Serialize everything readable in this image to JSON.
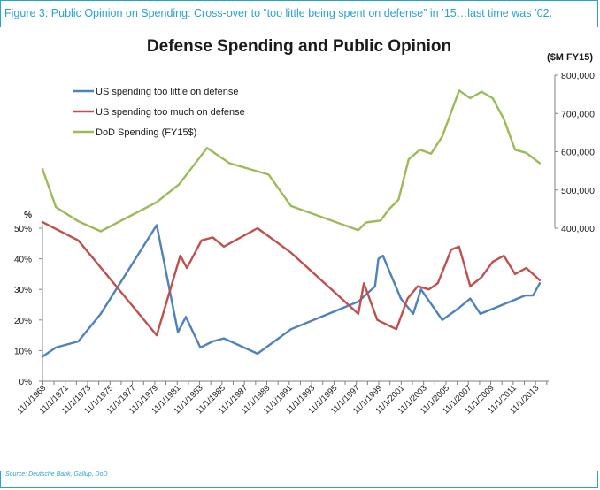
{
  "figure": {
    "caption": "Figure 3: Public Opinion on Spending: Cross-over to “too little being spent on defense” in ’15…last time was ’02.",
    "source": "Source: Deutsche Bank, Gallup, DoD",
    "accent_color": "#2aa1d4"
  },
  "chart_data": {
    "type": "line",
    "title": "Defense Spending and Public Opinion",
    "left_axis": {
      "unit_label": "%",
      "ylim": [
        0,
        50
      ],
      "ticks": [
        "0%",
        "10%",
        "20%",
        "30%",
        "40%",
        "50%"
      ]
    },
    "right_axis": {
      "unit_label": "($M FY15)",
      "ylim": [
        400000,
        800000
      ],
      "ticks": [
        "400,000",
        "500,000",
        "600,000",
        "700,000",
        "800,000"
      ]
    },
    "x_tick_labels": [
      "11/1/1969",
      "11/1/1971",
      "11/1/1973",
      "11/1/1975",
      "11/1/1977",
      "11/1/1979",
      "11/1/1981",
      "11/1/1983",
      "11/1/1985",
      "11/1/1987",
      "11/1/1989",
      "11/1/1991",
      "11/1/1993",
      "11/1/1995",
      "11/1/1997",
      "11/1/1999",
      "11/1/2001",
      "11/1/2003",
      "11/1/2005",
      "11/1/2007",
      "11/1/2009",
      "11/1/2011",
      "11/1/2013"
    ],
    "x_range": [
      1969.8,
      2015.0
    ],
    "legend_position": "top-left",
    "series": [
      {
        "name": "US spending too little on defense",
        "color": "#4f81bd",
        "axis": "left",
        "points": [
          [
            1969.8,
            8
          ],
          [
            1971.0,
            11
          ],
          [
            1973.0,
            13
          ],
          [
            1975.0,
            22
          ],
          [
            1980.0,
            51
          ],
          [
            1981.9,
            16
          ],
          [
            1982.6,
            21
          ],
          [
            1983.9,
            11
          ],
          [
            1985.0,
            13
          ],
          [
            1986.0,
            14
          ],
          [
            1989.0,
            9
          ],
          [
            1992.0,
            17
          ],
          [
            1998.0,
            26
          ],
          [
            1999.5,
            31
          ],
          [
            1999.8,
            40
          ],
          [
            2000.2,
            41
          ],
          [
            2001.8,
            27
          ],
          [
            2002.9,
            22
          ],
          [
            2003.6,
            30
          ],
          [
            2005.5,
            20
          ],
          [
            2007.0,
            24
          ],
          [
            2008.0,
            27
          ],
          [
            2008.9,
            22
          ],
          [
            2012.9,
            28
          ],
          [
            2013.6,
            28
          ],
          [
            2014.2,
            32
          ]
        ]
      },
      {
        "name": "US spending too much on defense",
        "color": "#c0504d",
        "axis": "left",
        "points": [
          [
            1969.8,
            52
          ],
          [
            1973.0,
            46
          ],
          [
            1980.0,
            15
          ],
          [
            1982.1,
            41
          ],
          [
            1982.7,
            37
          ],
          [
            1984.0,
            46
          ],
          [
            1985.0,
            47
          ],
          [
            1986.0,
            44
          ],
          [
            1989.0,
            50
          ],
          [
            1992.0,
            42
          ],
          [
            1998.0,
            22
          ],
          [
            1998.5,
            32
          ],
          [
            1999.7,
            20
          ],
          [
            2001.4,
            17
          ],
          [
            2002.4,
            27
          ],
          [
            2003.3,
            31
          ],
          [
            2004.3,
            30
          ],
          [
            2005.1,
            32
          ],
          [
            2006.3,
            43
          ],
          [
            2007.0,
            44
          ],
          [
            2008.0,
            31
          ],
          [
            2009.0,
            34
          ],
          [
            2010.0,
            39
          ],
          [
            2011.0,
            41
          ],
          [
            2012.0,
            35
          ],
          [
            2013.0,
            37
          ],
          [
            2014.2,
            33
          ]
        ]
      },
      {
        "name": "DoD Spending (FY15$)",
        "color": "#9bbb59",
        "axis": "right",
        "points": [
          [
            1969.8,
            555000
          ],
          [
            1971.0,
            455000
          ],
          [
            1973.0,
            418000
          ],
          [
            1975.0,
            392000
          ],
          [
            1980.0,
            468000
          ],
          [
            1982.0,
            515000
          ],
          [
            1984.5,
            610000
          ],
          [
            1986.5,
            570000
          ],
          [
            1990.0,
            540000
          ],
          [
            1992.0,
            458000
          ],
          [
            1998.0,
            395000
          ],
          [
            1998.7,
            415000
          ],
          [
            2000.0,
            420000
          ],
          [
            2000.7,
            448000
          ],
          [
            2001.6,
            475000
          ],
          [
            2002.5,
            580000
          ],
          [
            2003.5,
            605000
          ],
          [
            2004.5,
            595000
          ],
          [
            2005.5,
            640000
          ],
          [
            2007.0,
            760000
          ],
          [
            2008.0,
            740000
          ],
          [
            2009.0,
            757000
          ],
          [
            2010.0,
            740000
          ],
          [
            2011.0,
            685000
          ],
          [
            2012.0,
            605000
          ],
          [
            2013.0,
            597000
          ],
          [
            2014.2,
            570000
          ]
        ]
      }
    ]
  }
}
